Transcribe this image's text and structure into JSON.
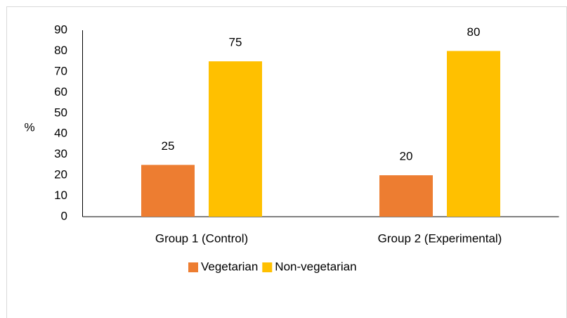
{
  "chart_data": {
    "type": "bar",
    "y_label": "%",
    "categories": [
      "Group 1 (Control)",
      "Group 2 (Experimental)"
    ],
    "series": [
      {
        "name": "Vegetarian",
        "color": "#ed7d31",
        "values": [
          25,
          20
        ]
      },
      {
        "name": "Non-vegetarian",
        "color": "#ffc000",
        "values": [
          75,
          80
        ]
      }
    ],
    "ylim": [
      0,
      90
    ],
    "yticks": [
      0,
      10,
      20,
      30,
      40,
      50,
      60,
      70,
      80,
      90
    ],
    "grid": false,
    "legend": "bottom"
  }
}
